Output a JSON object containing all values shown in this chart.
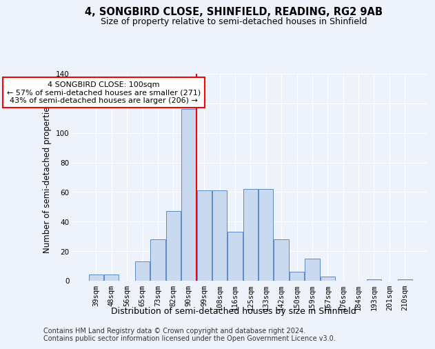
{
  "title": "4, SONGBIRD CLOSE, SHINFIELD, READING, RG2 9AB",
  "subtitle": "Size of property relative to semi-detached houses in Shinfield",
  "xlabel": "Distribution of semi-detached houses by size in Shinfield",
  "ylabel": "Number of semi-detached properties",
  "categories": [
    "39sqm",
    "48sqm",
    "56sqm",
    "65sqm",
    "73sqm",
    "82sqm",
    "90sqm",
    "99sqm",
    "108sqm",
    "116sqm",
    "125sqm",
    "133sqm",
    "142sqm",
    "150sqm",
    "159sqm",
    "167sqm",
    "176sqm",
    "184sqm",
    "193sqm",
    "201sqm",
    "210sqm"
  ],
  "values": [
    4,
    4,
    0,
    13,
    28,
    47,
    116,
    61,
    61,
    33,
    62,
    62,
    28,
    6,
    15,
    3,
    0,
    0,
    1,
    0,
    1
  ],
  "bar_color": "#c9d9f0",
  "bar_edge_color": "#5a8ac6",
  "vline_x_index": 6.5,
  "annotation_title": "4 SONGBIRD CLOSE: 100sqm",
  "annotation_line1": "← 57% of semi-detached houses are smaller (271)",
  "annotation_line2": "43% of semi-detached houses are larger (206) →",
  "annotation_box_color": "white",
  "annotation_box_edge": "red",
  "vline_color": "red",
  "ylim": [
    0,
    140
  ],
  "yticks": [
    0,
    20,
    40,
    60,
    80,
    100,
    120,
    140
  ],
  "footnote1": "Contains HM Land Registry data © Crown copyright and database right 2024.",
  "footnote2": "Contains public sector information licensed under the Open Government Licence v3.0.",
  "background_color": "#eef2fb",
  "grid_color": "white",
  "title_fontsize": 10.5,
  "subtitle_fontsize": 9,
  "axis_label_fontsize": 8.5,
  "tick_fontsize": 7.5,
  "footnote_fontsize": 7
}
